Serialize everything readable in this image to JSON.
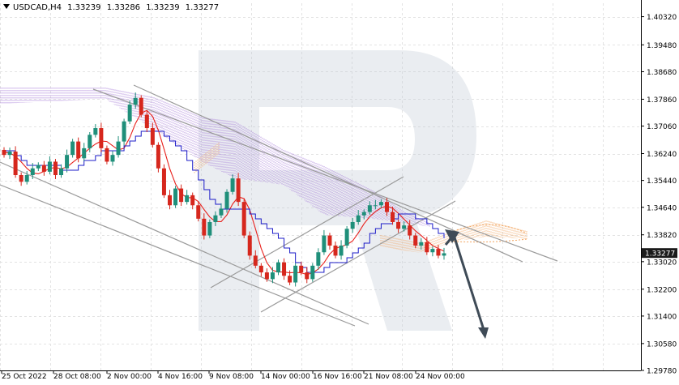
{
  "header": {
    "symbol": "USDCAD,H4",
    "open": "1.33239",
    "high": "1.33286",
    "low": "1.33239",
    "close": "1.33277"
  },
  "icons": [
    "dropdown-triangle-icon",
    "watermark-r-logo"
  ],
  "colors": {
    "bull_candle": "#1f8f7a",
    "bear_candle": "#d6271d",
    "tenkan": "#e8201b",
    "kijun": "#1c1cc8",
    "cloud_up": "#a57ad8",
    "cloud_down": "#f2a35c",
    "channel_lines": "#9a9a9a",
    "forecast_arrow": "#3f4b57",
    "price_marker_bg": "#1a1a1a"
  },
  "chart_data": {
    "type": "candlestick",
    "symbol": "USDCAD",
    "timeframe": "H4",
    "ylim": [
      1.2978,
      1.4072
    ],
    "y_ticks": [
      "1.40320",
      "1.39480",
      "1.38680",
      "1.37860",
      "1.37060",
      "1.36240",
      "1.35440",
      "1.34640",
      "1.33820",
      "1.33020",
      "1.32200",
      "1.31400",
      "1.30580",
      "1.29780"
    ],
    "last_price": "1.33277",
    "x_ticks": [
      "25 Oct 2022",
      "28 Oct 08:00",
      "2 Nov 00:00",
      "4 Nov 16:00",
      "9 Nov 08:00",
      "14 Nov 00:00",
      "16 Nov 16:00",
      "21 Nov 08:00",
      "24 Nov 00:00"
    ],
    "close_path": [
      1.362,
      1.363,
      1.356,
      1.354,
      1.356,
      1.358,
      1.359,
      1.357,
      1.36,
      1.356,
      1.358,
      1.362,
      1.366,
      1.361,
      1.364,
      1.368,
      1.37,
      1.364,
      1.36,
      1.362,
      1.366,
      1.372,
      1.377,
      1.379,
      1.374,
      1.37,
      1.365,
      1.358,
      1.35,
      1.347,
      1.352,
      1.348,
      1.35,
      1.347,
      1.343,
      1.338,
      1.342,
      1.344,
      1.346,
      1.351,
      1.355,
      1.348,
      1.338,
      1.332,
      1.329,
      1.327,
      1.325,
      1.327,
      1.33,
      1.326,
      1.324,
      1.329,
      1.327,
      1.325,
      1.329,
      1.333,
      1.338,
      1.335,
      1.332,
      1.335,
      1.34,
      1.342,
      1.344,
      1.345,
      1.347,
      1.347,
      1.348,
      1.345,
      1.342,
      1.34,
      1.341,
      1.338,
      1.335,
      1.336,
      1.333,
      1.334,
      1.332,
      1.3327
    ]
  }
}
